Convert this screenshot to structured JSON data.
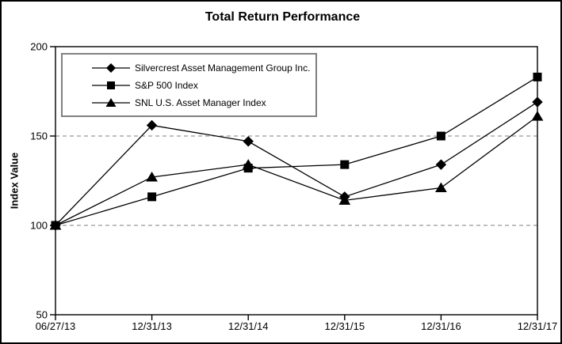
{
  "chart_data": {
    "type": "line",
    "title": "Total Return Performance",
    "xlabel": "",
    "ylabel": "Index Value",
    "ylim": [
      50,
      200
    ],
    "yticks": [
      50,
      100,
      150,
      200
    ],
    "gridlines_y": [
      100,
      150
    ],
    "grid": "dashed horizontal at 100 and 150",
    "legend_position": "top-left-inside",
    "categories": [
      "06/27/13",
      "12/31/13",
      "12/31/14",
      "12/31/15",
      "12/31/16",
      "12/31/17"
    ],
    "series": [
      {
        "name": "Silvercrest Asset Management Group Inc.",
        "marker": "diamond",
        "values": [
          100,
          156,
          147,
          116,
          134,
          169
        ]
      },
      {
        "name": "S&P 500 Index",
        "marker": "square",
        "values": [
          100,
          116,
          132,
          134,
          150,
          183
        ]
      },
      {
        "name": "SNL U.S. Asset Manager Index",
        "marker": "triangle",
        "values": [
          100,
          127,
          134,
          114,
          121,
          161
        ]
      }
    ],
    "colors": {
      "series_line": "#000000",
      "marker_fill": "#000000",
      "gridline": "#7f7f7f",
      "axis": "#000000",
      "legend_border": "#808080",
      "background": "#ffffff"
    }
  }
}
